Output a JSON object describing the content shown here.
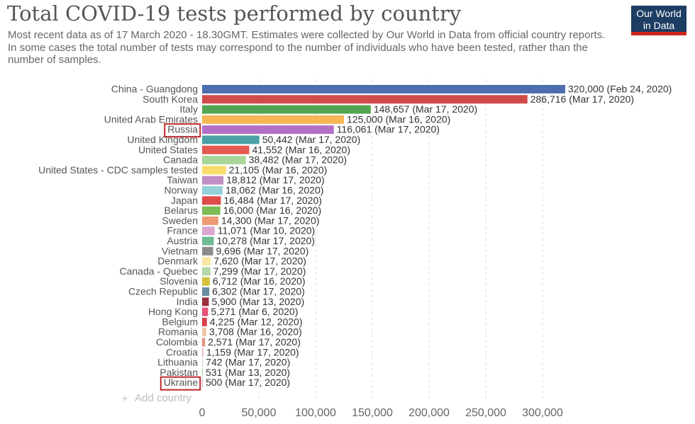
{
  "title": "Total COVID-19 tests performed by country",
  "subtitle": "Most recent data as of 17 March 2020 - 18.30GMT. Estimates were collected by Our World in Data from official country reports. In some cases the total number of tests may correspond to the number of individuals who have been tested, rather than the number of samples.",
  "logo": {
    "line1": "Our World",
    "line2": "in Data",
    "bg_color": "#1d3d63",
    "accent_color": "#ce261e"
  },
  "add_country": {
    "icon": "plus-icon",
    "label": "Add country"
  },
  "highlight_color": "#c0272d",
  "chart_data": {
    "type": "bar",
    "orientation": "horizontal",
    "title": "Total COVID-19 tests performed by country",
    "xlim": [
      0,
      320000
    ],
    "xticks": [
      0,
      50000,
      100000,
      150000,
      200000,
      250000,
      300000
    ],
    "xtick_labels": [
      "0",
      "50,000",
      "100,000",
      "150,000",
      "200,000",
      "250,000",
      "300,000"
    ],
    "grid": "vertical dashed",
    "highlighted": [
      "Russia",
      "Ukraine"
    ],
    "bars": [
      {
        "category": "China - Guangdong",
        "value": 320000,
        "label": "320,000 (Feb 24, 2020)",
        "color": "#4c6eaf"
      },
      {
        "category": "South Korea",
        "value": 286716,
        "label": "286,716 (Mar 17, 2020)",
        "color": "#d24b4b"
      },
      {
        "category": "Italy",
        "value": 148657,
        "label": "148,657 (Mar 17, 2020)",
        "color": "#53a552"
      },
      {
        "category": "United Arab Emirates",
        "value": 125000,
        "label": "125,000 (Mar 16, 2020)",
        "color": "#f5b653"
      },
      {
        "category": "Russia",
        "value": 116061,
        "label": "116,061 (Mar 17, 2020)",
        "color": "#b26fc6"
      },
      {
        "category": "United Kingdom",
        "value": 50442,
        "label": "50,442 (Mar 17, 2020)",
        "color": "#4aa0a6"
      },
      {
        "category": "United States",
        "value": 41552,
        "label": "41,552 (Mar 16, 2020)",
        "color": "#e45a51"
      },
      {
        "category": "Canada",
        "value": 38482,
        "label": "38,482 (Mar 17, 2020)",
        "color": "#a8d59a"
      },
      {
        "category": "United States - CDC samples tested",
        "value": 21105,
        "label": "21,105 (Mar 16, 2020)",
        "color": "#f8db6b"
      },
      {
        "category": "Taiwan",
        "value": 18812,
        "label": "18,812 (Mar 17, 2020)",
        "color": "#c18fc6"
      },
      {
        "category": "Norway",
        "value": 18062,
        "label": "18,062 (Mar 16, 2020)",
        "color": "#93d0d8"
      },
      {
        "category": "Japan",
        "value": 16484,
        "label": "16,484 (Mar 17, 2020)",
        "color": "#e04a4a"
      },
      {
        "category": "Belarus",
        "value": 16000,
        "label": "16,000 (Mar 16, 2020)",
        "color": "#7cbb55"
      },
      {
        "category": "Sweden",
        "value": 14300,
        "label": "14,300 (Mar 17, 2020)",
        "color": "#ee9a75"
      },
      {
        "category": "France",
        "value": 11071,
        "label": "11,071 (Mar 10, 2020)",
        "color": "#dba6cf"
      },
      {
        "category": "Austria",
        "value": 10278,
        "label": "10,278 (Mar 17, 2020)",
        "color": "#6dbb92"
      },
      {
        "category": "Vietnam",
        "value": 9696,
        "label": "9,696 (Mar 17, 2020)",
        "color": "#8b8b8b"
      },
      {
        "category": "Denmark",
        "value": 7620,
        "label": "7,620 (Mar 17, 2020)",
        "color": "#f9e9a4"
      },
      {
        "category": "Canada - Quebec",
        "value": 7299,
        "label": "7,299 (Mar 17, 2020)",
        "color": "#b5d7a8"
      },
      {
        "category": "Slovenia",
        "value": 6712,
        "label": "6,712 (Mar 16, 2020)",
        "color": "#d3c13a"
      },
      {
        "category": "Czech Republic",
        "value": 6302,
        "label": "6,302 (Mar 17, 2020)",
        "color": "#6a8ea1"
      },
      {
        "category": "India",
        "value": 5900,
        "label": "5,900 (Mar 13, 2020)",
        "color": "#9b2f3d"
      },
      {
        "category": "Hong Kong",
        "value": 5271,
        "label": "5,271 (Mar 6, 2020)",
        "color": "#e4537a"
      },
      {
        "category": "Belgium",
        "value": 4225,
        "label": "4,225 (Mar 12, 2020)",
        "color": "#d8404a"
      },
      {
        "category": "Romania",
        "value": 3708,
        "label": "3,708 (Mar 16, 2020)",
        "color": "#f0c7a6"
      },
      {
        "category": "Colombia",
        "value": 2571,
        "label": "2,571 (Mar 17, 2020)",
        "color": "#e78f7e"
      },
      {
        "category": "Croatia",
        "value": 1159,
        "label": "1,159 (Mar 17, 2020)",
        "color": "#eab4b4"
      },
      {
        "category": "Lithuania",
        "value": 742,
        "label": "742 (Mar 17, 2020)",
        "color": "#cfcfcf"
      },
      {
        "category": "Pakistan",
        "value": 531,
        "label": "531 (Mar 13, 2020)",
        "color": "#9fd39a"
      },
      {
        "category": "Ukraine",
        "value": 500,
        "label": "500 (Mar 17, 2020)",
        "color": "#e2a3c7"
      }
    ]
  }
}
